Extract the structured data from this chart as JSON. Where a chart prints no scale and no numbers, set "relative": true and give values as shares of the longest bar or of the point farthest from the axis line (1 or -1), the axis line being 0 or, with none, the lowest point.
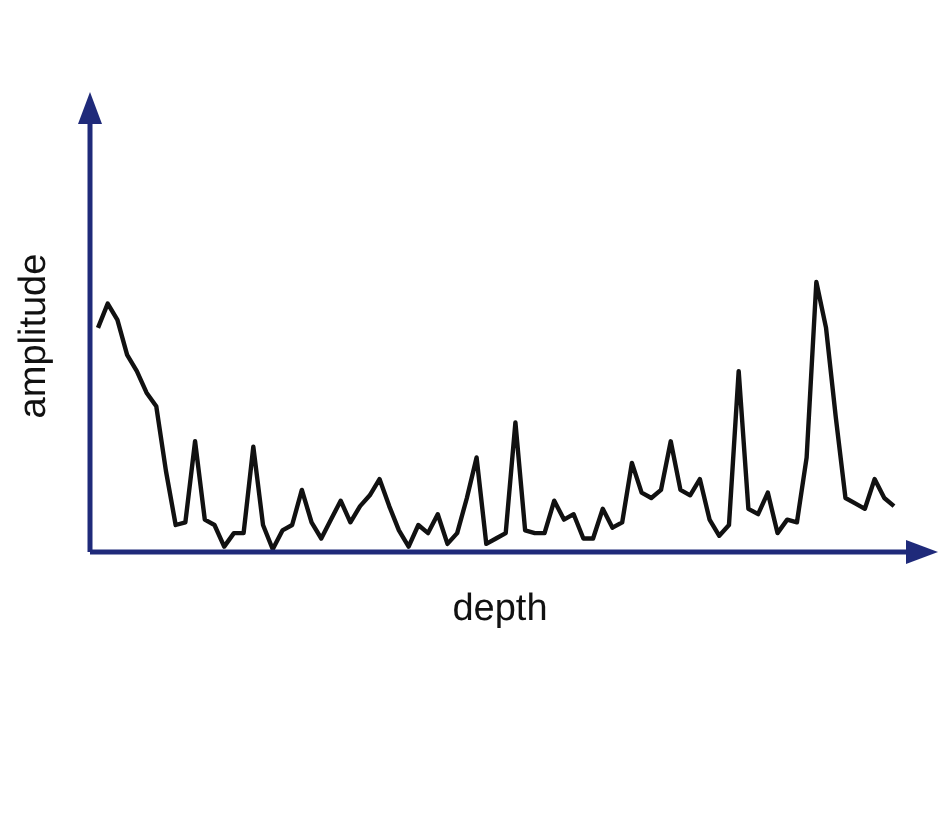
{
  "chart_data": {
    "type": "line",
    "xlabel": "depth",
    "ylabel": "amplitude",
    "relative": true,
    "grid": false,
    "legend": false,
    "marker": "none",
    "line_style": "solid",
    "categories": [
      null,
      null,
      null,
      null,
      null,
      null,
      null,
      null,
      null,
      null,
      null,
      null,
      null,
      null,
      null,
      null,
      null,
      null,
      null,
      null,
      null,
      null,
      null,
      null,
      null,
      null,
      null,
      null,
      null,
      null,
      null,
      null,
      null,
      null,
      null,
      null,
      null,
      null,
      null,
      null,
      null,
      null,
      null,
      null,
      null,
      null,
      null,
      null,
      null,
      null,
      null,
      null,
      null,
      null,
      null,
      null,
      null,
      null,
      null,
      null,
      null,
      null,
      null,
      null,
      null,
      null,
      null,
      null,
      null,
      null,
      null,
      null,
      null,
      null,
      null,
      null,
      null,
      null,
      null,
      null,
      null,
      null,
      null
    ],
    "series": [
      {
        "color": "#111111",
        "values": [
          0.83,
          0.92,
          0.86,
          0.73,
          0.67,
          0.59,
          0.54,
          0.3,
          0.1,
          0.11,
          0.41,
          0.12,
          0.1,
          0.02,
          0.07,
          0.07,
          0.39,
          0.1,
          0.01,
          0.08,
          0.1,
          0.23,
          0.11,
          0.05,
          0.12,
          0.19,
          0.11,
          0.17,
          0.21,
          0.27,
          0.17,
          0.08,
          0.02,
          0.1,
          0.07,
          0.14,
          0.03,
          0.07,
          0.2,
          0.35,
          0.03,
          0.05,
          0.07,
          0.48,
          0.08,
          0.07,
          0.07,
          0.19,
          0.12,
          0.14,
          0.05,
          0.05,
          0.16,
          0.09,
          0.11,
          0.33,
          0.22,
          0.2,
          0.23,
          0.41,
          0.23,
          0.21,
          0.27,
          0.12,
          0.06,
          0.1,
          0.67,
          0.16,
          0.14,
          0.22,
          0.07,
          0.12,
          0.11,
          0.35,
          1,
          0.83,
          0.5,
          0.2,
          0.18,
          0.16,
          0.27,
          0.2,
          0.17
        ]
      }
    ]
  }
}
